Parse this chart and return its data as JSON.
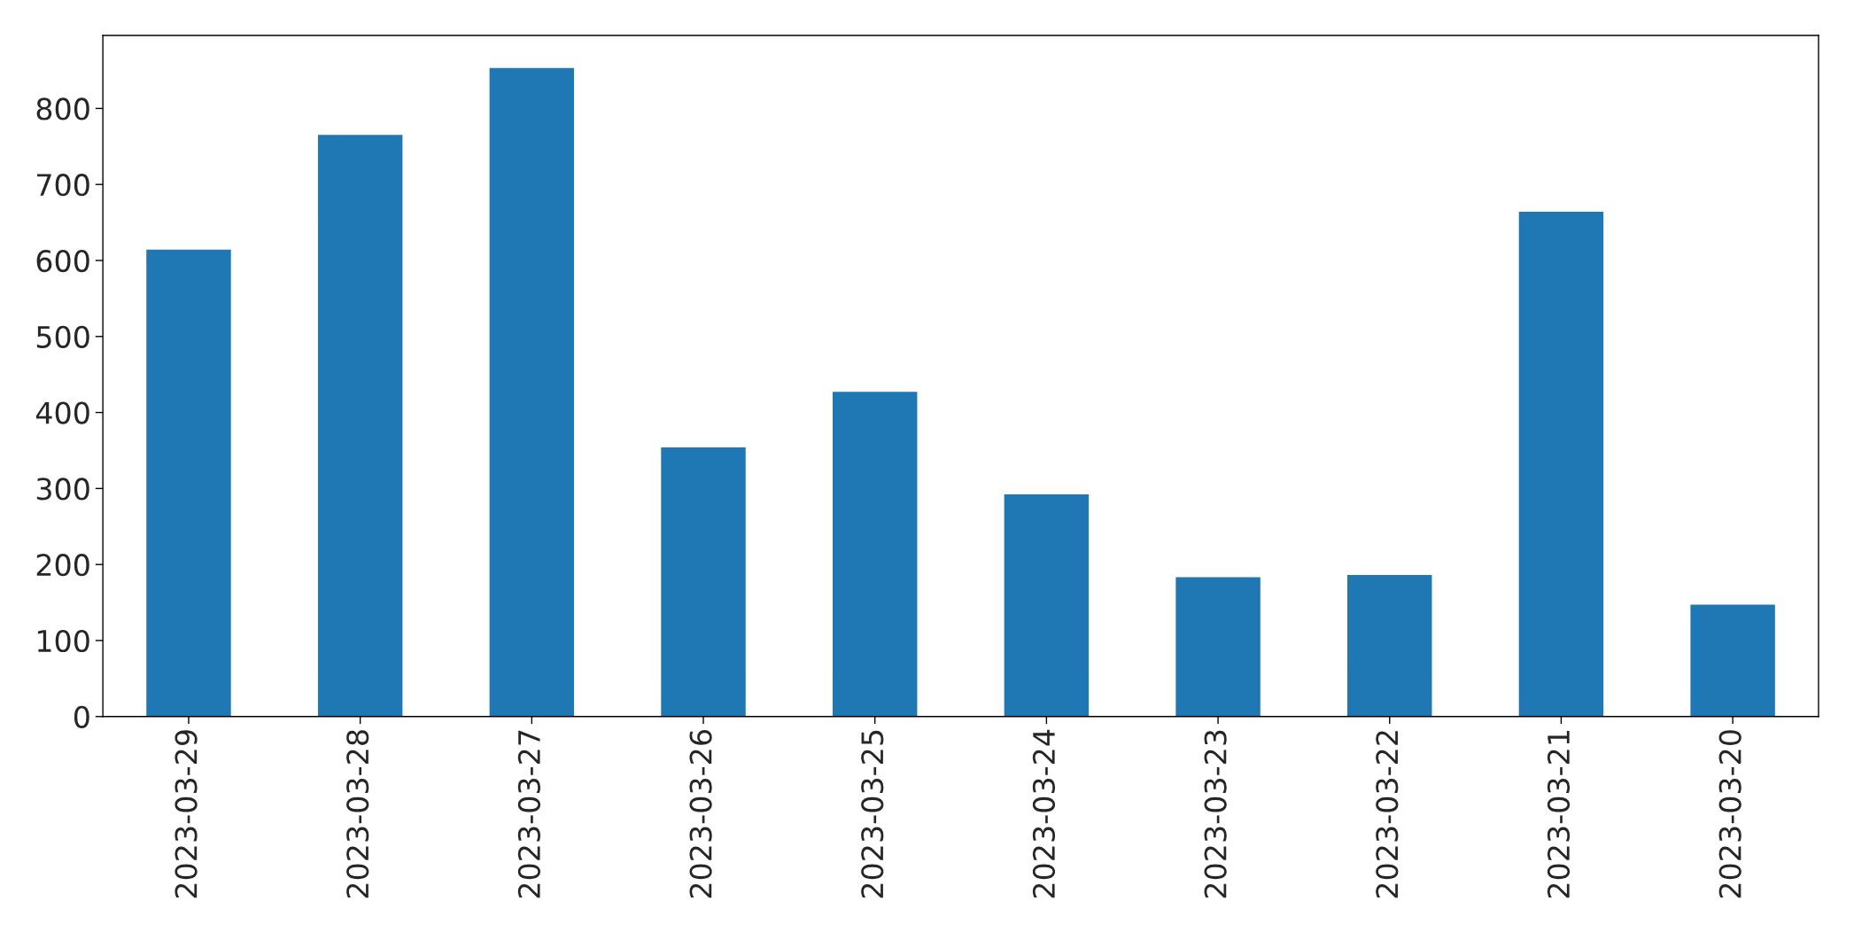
{
  "chart_data": {
    "type": "bar",
    "categories": [
      "2023-03-29",
      "2023-03-28",
      "2023-03-27",
      "2023-03-26",
      "2023-03-25",
      "2023-03-24",
      "2023-03-23",
      "2023-03-22",
      "2023-03-21",
      "2023-03-20"
    ],
    "values": [
      615,
      766,
      854,
      355,
      428,
      293,
      184,
      187,
      665,
      148
    ],
    "color": "#1f77b4",
    "ylim": [
      0,
      896
    ],
    "yticks": [
      0,
      100,
      200,
      300,
      400,
      500,
      600,
      700,
      800
    ],
    "grid": false,
    "legend": false
  }
}
